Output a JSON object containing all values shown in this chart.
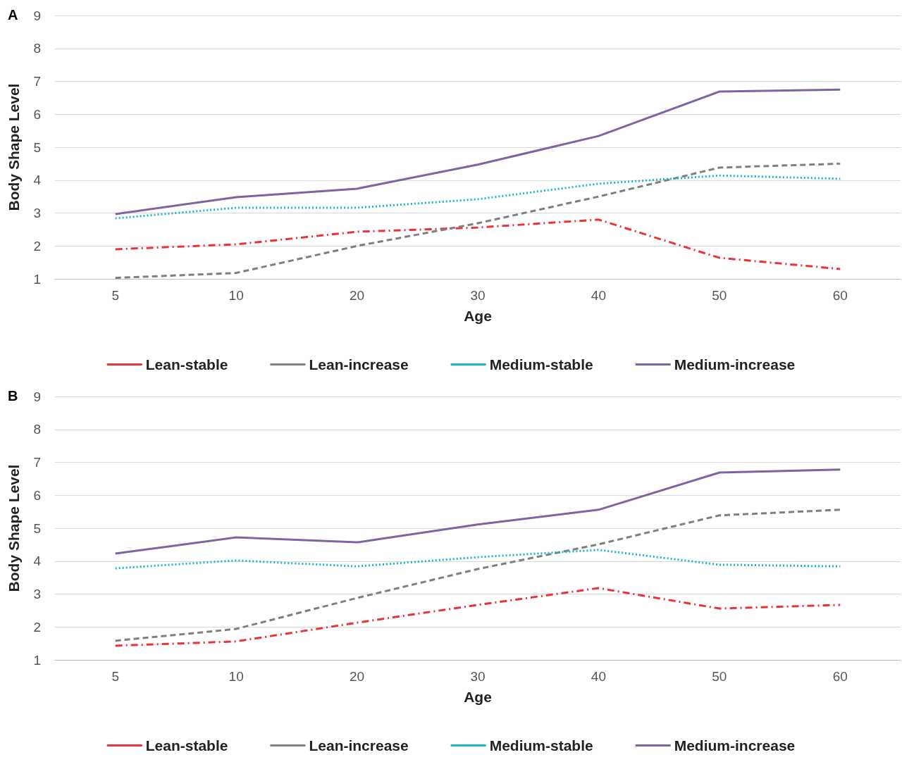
{
  "chart_data": [
    {
      "type": "line",
      "title": "A",
      "xlabel": "Age",
      "ylabel": "Body Shape Level",
      "categories": [
        "5",
        "10",
        "20",
        "30",
        "40",
        "50",
        "60"
      ],
      "ylim": [
        1,
        9
      ],
      "yticks": [
        1,
        2,
        3,
        4,
        5,
        6,
        7,
        8,
        9
      ],
      "grid": "y",
      "legend": "bottom",
      "marker": "none",
      "series": [
        {
          "name": "Lean-stable",
          "color": "#e8333b",
          "line_style": "dashdot",
          "values": [
            1.9,
            2.05,
            2.43,
            2.56,
            2.8,
            1.64,
            1.3
          ]
        },
        {
          "name": "Lean-increase",
          "color": "#7f7f7f",
          "line_style": "dashed",
          "values": [
            1.03,
            1.18,
            2.0,
            2.69,
            3.5,
            4.38,
            4.5
          ]
        },
        {
          "name": "Medium-stable",
          "color": "#1fb5c9",
          "line_style": "dotted",
          "values": [
            2.84,
            3.16,
            3.16,
            3.42,
            3.89,
            4.14,
            4.04
          ]
        },
        {
          "name": "Medium-increase",
          "color": "#8064a2",
          "line_style": "solid",
          "values": [
            2.97,
            3.48,
            3.74,
            4.47,
            5.34,
            6.69,
            6.75
          ]
        }
      ]
    },
    {
      "type": "line",
      "title": "B",
      "xlabel": "Age",
      "ylabel": "Body Shape Level",
      "categories": [
        "5",
        "10",
        "20",
        "30",
        "40",
        "50",
        "60"
      ],
      "ylim": [
        1,
        9
      ],
      "yticks": [
        1,
        2,
        3,
        4,
        5,
        6,
        7,
        8,
        9
      ],
      "grid": "y",
      "legend": "bottom",
      "marker": "none",
      "series": [
        {
          "name": "Lean-stable",
          "color": "#e8333b",
          "line_style": "dashdot",
          "values": [
            1.43,
            1.56,
            2.13,
            2.67,
            3.18,
            2.56,
            2.67
          ]
        },
        {
          "name": "Lean-increase",
          "color": "#7f7f7f",
          "line_style": "dashed",
          "values": [
            1.58,
            1.94,
            2.88,
            3.76,
            4.51,
            5.39,
            5.56
          ]
        },
        {
          "name": "Medium-stable",
          "color": "#1fb5c9",
          "line_style": "dotted",
          "values": [
            3.78,
            4.02,
            3.84,
            4.12,
            4.34,
            3.89,
            3.84
          ]
        },
        {
          "name": "Medium-increase",
          "color": "#8064a2",
          "line_style": "solid",
          "values": [
            4.23,
            4.72,
            4.57,
            5.11,
            5.56,
            6.69,
            6.78
          ]
        }
      ]
    }
  ]
}
